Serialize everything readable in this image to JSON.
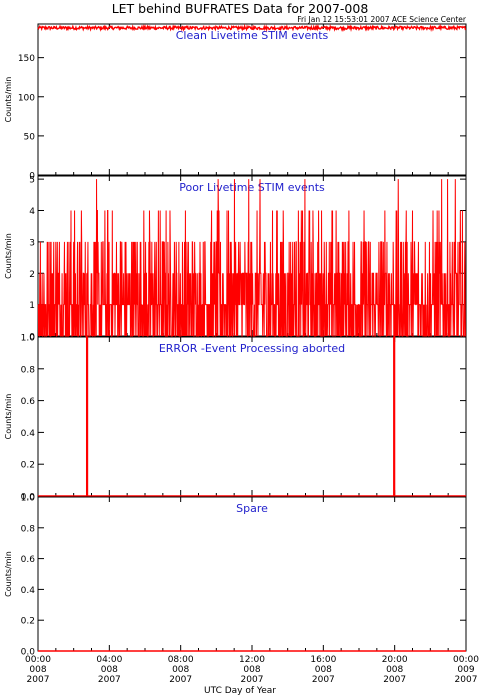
{
  "title": "LET behind BUFRATES Data for 2007-008",
  "stamp": "Fri Jan 12 15:53:01 2007 ACE Science Center",
  "xlabel": "UTC Day of Year",
  "colors": {
    "trace": "#ff0000",
    "panel_title": "#2222cc",
    "axes": "#000000"
  },
  "x_ticks": [
    {
      "time": "00:00",
      "doy": "008",
      "year": "2007"
    },
    {
      "time": "04:00",
      "doy": "008",
      "year": "2007"
    },
    {
      "time": "08:00",
      "doy": "008",
      "year": "2007"
    },
    {
      "time": "12:00",
      "doy": "008",
      "year": "2007"
    },
    {
      "time": "16:00",
      "doy": "008",
      "year": "2007"
    },
    {
      "time": "20:00",
      "doy": "008",
      "year": "2007"
    },
    {
      "time": "00:00",
      "doy": "009",
      "year": "2007"
    }
  ],
  "chart_data": [
    {
      "type": "line",
      "title": "Clean Livetime STIM events",
      "ylabel": "Counts/min",
      "xlim": [
        0,
        24
      ],
      "ylim": [
        0,
        193
      ],
      "yticks": [
        0,
        50,
        100,
        150
      ],
      "ytick_labels": [
        "0",
        "50",
        "100",
        "150"
      ],
      "pattern": "noisy-constant",
      "level": 188,
      "noise": 2
    },
    {
      "type": "line",
      "title": "Poor Livetime STIM events",
      "ylabel": "Counts/min",
      "xlim": [
        0,
        24
      ],
      "ylim": [
        0,
        5.1
      ],
      "yticks": [
        0,
        1,
        2,
        3,
        4,
        5
      ],
      "ytick_labels": [
        "0",
        "1",
        "2",
        "3",
        "4",
        "5"
      ],
      "pattern": "random-counts",
      "values_range": [
        0,
        5
      ]
    },
    {
      "type": "line",
      "title": "ERROR -Event Processing aborted",
      "ylabel": "Counts/min",
      "xlim": [
        0,
        24
      ],
      "ylim": [
        0,
        1.0
      ],
      "yticks": [
        0,
        0.2,
        0.4,
        0.6,
        0.8,
        1.0
      ],
      "ytick_labels": [
        "0.0",
        "0.2",
        "0.4",
        "0.6",
        "0.8",
        "1.0"
      ],
      "pattern": "spikes",
      "spikes": [
        {
          "x": 2.73,
          "y": 1
        },
        {
          "x": 19.95,
          "y": 1
        }
      ]
    },
    {
      "type": "line",
      "title": "Spare",
      "ylabel": "Counts/min",
      "xlim": [
        0,
        24
      ],
      "ylim": [
        0,
        1.0
      ],
      "yticks": [
        0,
        0.2,
        0.4,
        0.6,
        0.8,
        1.0
      ],
      "ytick_labels": [
        "0.0",
        "0.2",
        "0.4",
        "0.6",
        "0.8",
        "1.0"
      ],
      "pattern": "zero"
    }
  ]
}
